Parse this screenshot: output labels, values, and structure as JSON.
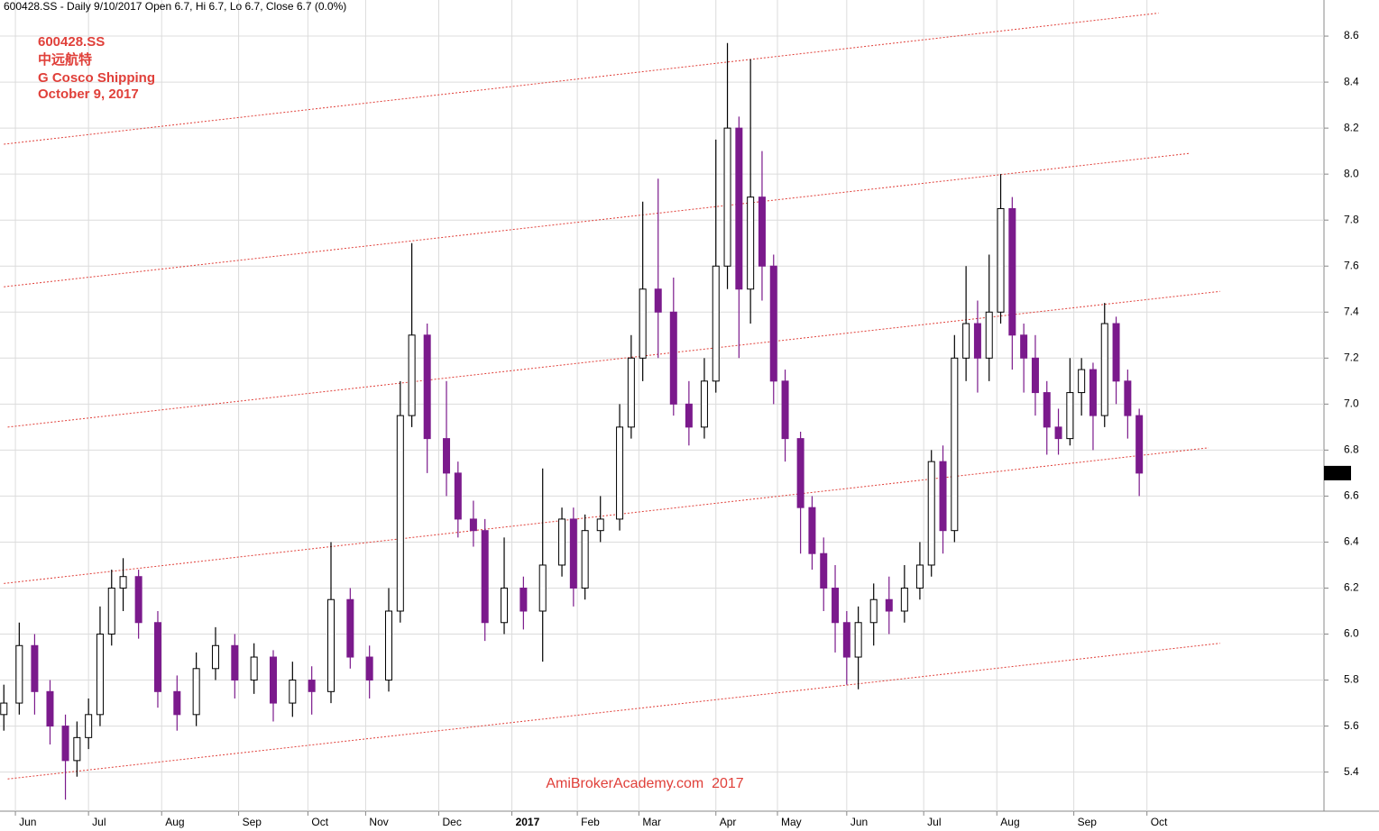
{
  "chart_data": {
    "type": "candlestick",
    "title": "600428.SS - Daily 9/10/2017 Open 6.7, Hi 6.7, Lo 6.7, Close 6.7 (0.0%)",
    "annotations": [
      "600428.SS",
      "中远航特",
      "G Cosco Shipping",
      "October 9, 2017"
    ],
    "footer": "AmiBrokerAcademy.com  2017",
    "up_color": "#ffffff",
    "down_color": "#7b1a8c",
    "grid": true,
    "xlim": [
      -1,
      343
    ],
    "xticks": [
      {
        "value": 3,
        "label": "Jun"
      },
      {
        "value": 22,
        "label": "Jul"
      },
      {
        "value": 41,
        "label": "Aug"
      },
      {
        "value": 61,
        "label": "Sep"
      },
      {
        "value": 79,
        "label": "Oct"
      },
      {
        "value": 94,
        "label": "Nov"
      },
      {
        "value": 113,
        "label": "Dec"
      },
      {
        "value": 132,
        "label": "2017"
      },
      {
        "value": 149,
        "label": "Feb"
      },
      {
        "value": 165,
        "label": "Mar"
      },
      {
        "value": 185,
        "label": "Apr"
      },
      {
        "value": 201,
        "label": "May"
      },
      {
        "value": 219,
        "label": "Jun"
      },
      {
        "value": 239,
        "label": "Jul"
      },
      {
        "value": 258,
        "label": "Aug"
      },
      {
        "value": 278,
        "label": "Sep"
      },
      {
        "value": 297,
        "label": "Oct"
      }
    ],
    "ylim": [
      5.23,
      8.757
    ],
    "yticks": [
      5.4,
      5.6,
      5.8,
      {
        "value": 6,
        "label": "6.0"
      },
      6.2,
      6.4,
      6.6,
      6.8,
      {
        "value": 7,
        "label": "7.0"
      },
      7.2,
      7.4,
      7.6,
      7.8,
      {
        "value": 8,
        "label": "8.0"
      },
      8.2,
      8.4,
      8.6
    ],
    "channel_color": "#e0403a",
    "channels": [
      {
        "x": [
          0,
          300
        ],
        "y": [
          8.13,
          8.7
        ]
      },
      {
        "x": [
          0,
          308
        ],
        "y": [
          7.51,
          8.09
        ]
      },
      {
        "x": [
          1,
          316
        ],
        "y": [
          6.9,
          7.49
        ]
      },
      {
        "x": [
          0,
          313
        ],
        "y": [
          6.22,
          6.81
        ]
      },
      {
        "x": [
          1,
          316
        ],
        "y": [
          5.37,
          5.96
        ]
      }
    ],
    "x": [
      0,
      4,
      8,
      12,
      16,
      19,
      22,
      25,
      28,
      31,
      35,
      40,
      45,
      50,
      55,
      60,
      65,
      70,
      75,
      80,
      85,
      90,
      95,
      100,
      103,
      106,
      110,
      115,
      118,
      122,
      125,
      130,
      135,
      140,
      145,
      148,
      151,
      155,
      160,
      163,
      166,
      170,
      174,
      178,
      182,
      185,
      188,
      191,
      194,
      197,
      200,
      203,
      207,
      210,
      213,
      216,
      219,
      222,
      226,
      230,
      234,
      238,
      241,
      244,
      247,
      250,
      253,
      256,
      259,
      262,
      265,
      268,
      271,
      274,
      277,
      280,
      283,
      286,
      289,
      292,
      295
    ],
    "open": [
      5.65,
      5.7,
      5.95,
      5.75,
      5.6,
      5.45,
      5.55,
      5.65,
      6.0,
      6.2,
      6.25,
      6.05,
      5.75,
      5.65,
      5.85,
      5.95,
      5.8,
      5.9,
      5.7,
      5.8,
      5.75,
      6.15,
      5.9,
      5.8,
      6.1,
      6.95,
      7.3,
      6.85,
      6.7,
      6.5,
      6.45,
      6.05,
      6.2,
      6.1,
      6.3,
      6.5,
      6.2,
      6.45,
      6.5,
      6.9,
      7.2,
      7.5,
      7.4,
      7.0,
      6.9,
      7.1,
      7.6,
      8.2,
      7.5,
      7.9,
      7.6,
      7.1,
      6.85,
      6.55,
      6.35,
      6.2,
      6.05,
      5.9,
      6.05,
      6.15,
      6.1,
      6.2,
      6.3,
      6.75,
      6.45,
      7.2,
      7.35,
      7.2,
      7.4,
      7.85,
      7.3,
      7.2,
      7.05,
      6.9,
      6.85,
      7.05,
      7.15,
      6.95,
      7.35,
      7.1,
      6.95
    ],
    "high": [
      5.78,
      6.05,
      6.0,
      5.8,
      5.65,
      5.62,
      5.72,
      6.12,
      6.28,
      6.33,
      6.28,
      6.1,
      5.82,
      5.92,
      6.03,
      6.0,
      5.96,
      5.93,
      5.88,
      5.86,
      6.4,
      6.2,
      5.95,
      6.2,
      7.1,
      7.7,
      7.35,
      7.1,
      6.75,
      6.58,
      6.5,
      6.42,
      6.25,
      6.72,
      6.55,
      6.55,
      6.52,
      6.6,
      7.0,
      7.3,
      7.88,
      7.98,
      7.55,
      7.1,
      7.2,
      8.15,
      8.57,
      8.25,
      8.5,
      8.1,
      7.65,
      7.15,
      6.88,
      6.6,
      6.42,
      6.3,
      6.1,
      6.12,
      6.22,
      6.25,
      6.3,
      6.4,
      6.8,
      6.82,
      7.3,
      7.6,
      7.45,
      7.65,
      8.0,
      7.9,
      7.35,
      7.3,
      7.1,
      6.98,
      7.2,
      7.2,
      7.18,
      7.44,
      7.38,
      7.15,
      6.98
    ],
    "low": [
      5.58,
      5.65,
      5.65,
      5.52,
      5.28,
      5.38,
      5.5,
      5.6,
      5.95,
      6.1,
      5.98,
      5.68,
      5.58,
      5.6,
      5.8,
      5.72,
      5.74,
      5.62,
      5.64,
      5.65,
      5.7,
      5.85,
      5.72,
      5.75,
      6.05,
      6.9,
      6.7,
      6.6,
      6.42,
      6.38,
      5.97,
      6.0,
      6.02,
      5.88,
      6.25,
      6.12,
      6.15,
      6.4,
      6.45,
      6.85,
      7.1,
      7.2,
      6.95,
      6.82,
      6.85,
      7.05,
      7.5,
      7.2,
      7.35,
      7.45,
      7.0,
      6.75,
      6.35,
      6.28,
      6.1,
      5.92,
      5.78,
      5.76,
      5.95,
      6.0,
      6.05,
      6.15,
      6.25,
      6.35,
      6.4,
      7.1,
      7.05,
      7.1,
      7.35,
      7.15,
      7.05,
      6.95,
      6.78,
      6.78,
      6.82,
      6.95,
      6.8,
      6.9,
      7.0,
      6.85,
      6.6
    ],
    "close": [
      5.7,
      5.95,
      5.75,
      5.6,
      5.45,
      5.55,
      5.65,
      6.0,
      6.2,
      6.25,
      6.05,
      5.75,
      5.65,
      5.85,
      5.95,
      5.8,
      5.9,
      5.7,
      5.8,
      5.75,
      6.15,
      5.9,
      5.8,
      6.1,
      6.95,
      7.3,
      6.85,
      6.7,
      6.5,
      6.45,
      6.05,
      6.2,
      6.1,
      6.3,
      6.5,
      6.2,
      6.45,
      6.5,
      6.9,
      7.2,
      7.5,
      7.4,
      7.0,
      6.9,
      7.1,
      7.6,
      8.2,
      7.5,
      7.9,
      7.6,
      7.1,
      6.85,
      6.55,
      6.35,
      6.2,
      6.05,
      5.9,
      6.05,
      6.15,
      6.1,
      6.2,
      6.3,
      6.75,
      6.45,
      7.2,
      7.35,
      7.2,
      7.4,
      7.85,
      7.3,
      7.2,
      7.05,
      6.9,
      6.85,
      7.05,
      7.15,
      6.95,
      7.35,
      7.1,
      6.95,
      6.7
    ]
  }
}
